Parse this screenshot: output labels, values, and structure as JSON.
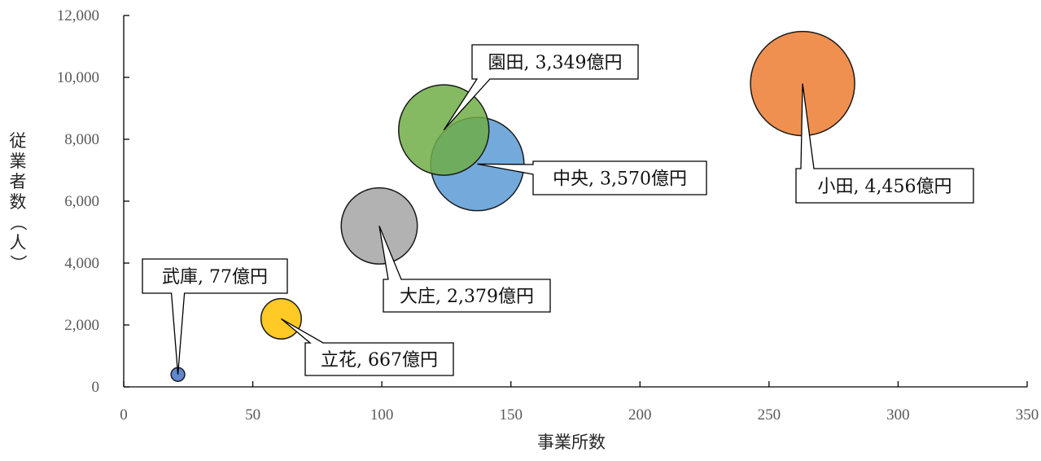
{
  "chart_data": {
    "type": "bubble",
    "xlabel": "事業所数",
    "ylabel": "従業者数（人）",
    "xlim": [
      0,
      350
    ],
    "ylim": [
      0,
      12000
    ],
    "x_ticks": [
      "0",
      "50",
      "100",
      "150",
      "200",
      "250",
      "300",
      "350"
    ],
    "y_ticks": [
      "0",
      "2,000",
      "4,000",
      "6,000",
      "8,000",
      "10,000",
      "12,000"
    ],
    "grid": false,
    "legend": "none",
    "series": [
      {
        "name": "武庫",
        "label": "武庫, 77億円",
        "x": 21,
        "y": 400,
        "size": 77,
        "color": "#4472c4"
      },
      {
        "name": "立花",
        "label": "立花, 667億円",
        "x": 61,
        "y": 2200,
        "size": 667,
        "color": "#ffc000"
      },
      {
        "name": "大庄",
        "label": "大庄, 2,379億円",
        "x": 99,
        "y": 5200,
        "size": 2379,
        "color": "#a5a5a5"
      },
      {
        "name": "中央",
        "label": "中央, 3,570億円",
        "x": 137,
        "y": 7200,
        "size": 3570,
        "color": "#5b9bd5"
      },
      {
        "name": "園田",
        "label": "園田, 3,349億円",
        "x": 124,
        "y": 8300,
        "size": 3349,
        "color": "#70ad47"
      },
      {
        "name": "小田",
        "label": "小田, 4,456億円",
        "x": 263,
        "y": 9800,
        "size": 4456,
        "color": "#ed7d31"
      }
    ]
  }
}
